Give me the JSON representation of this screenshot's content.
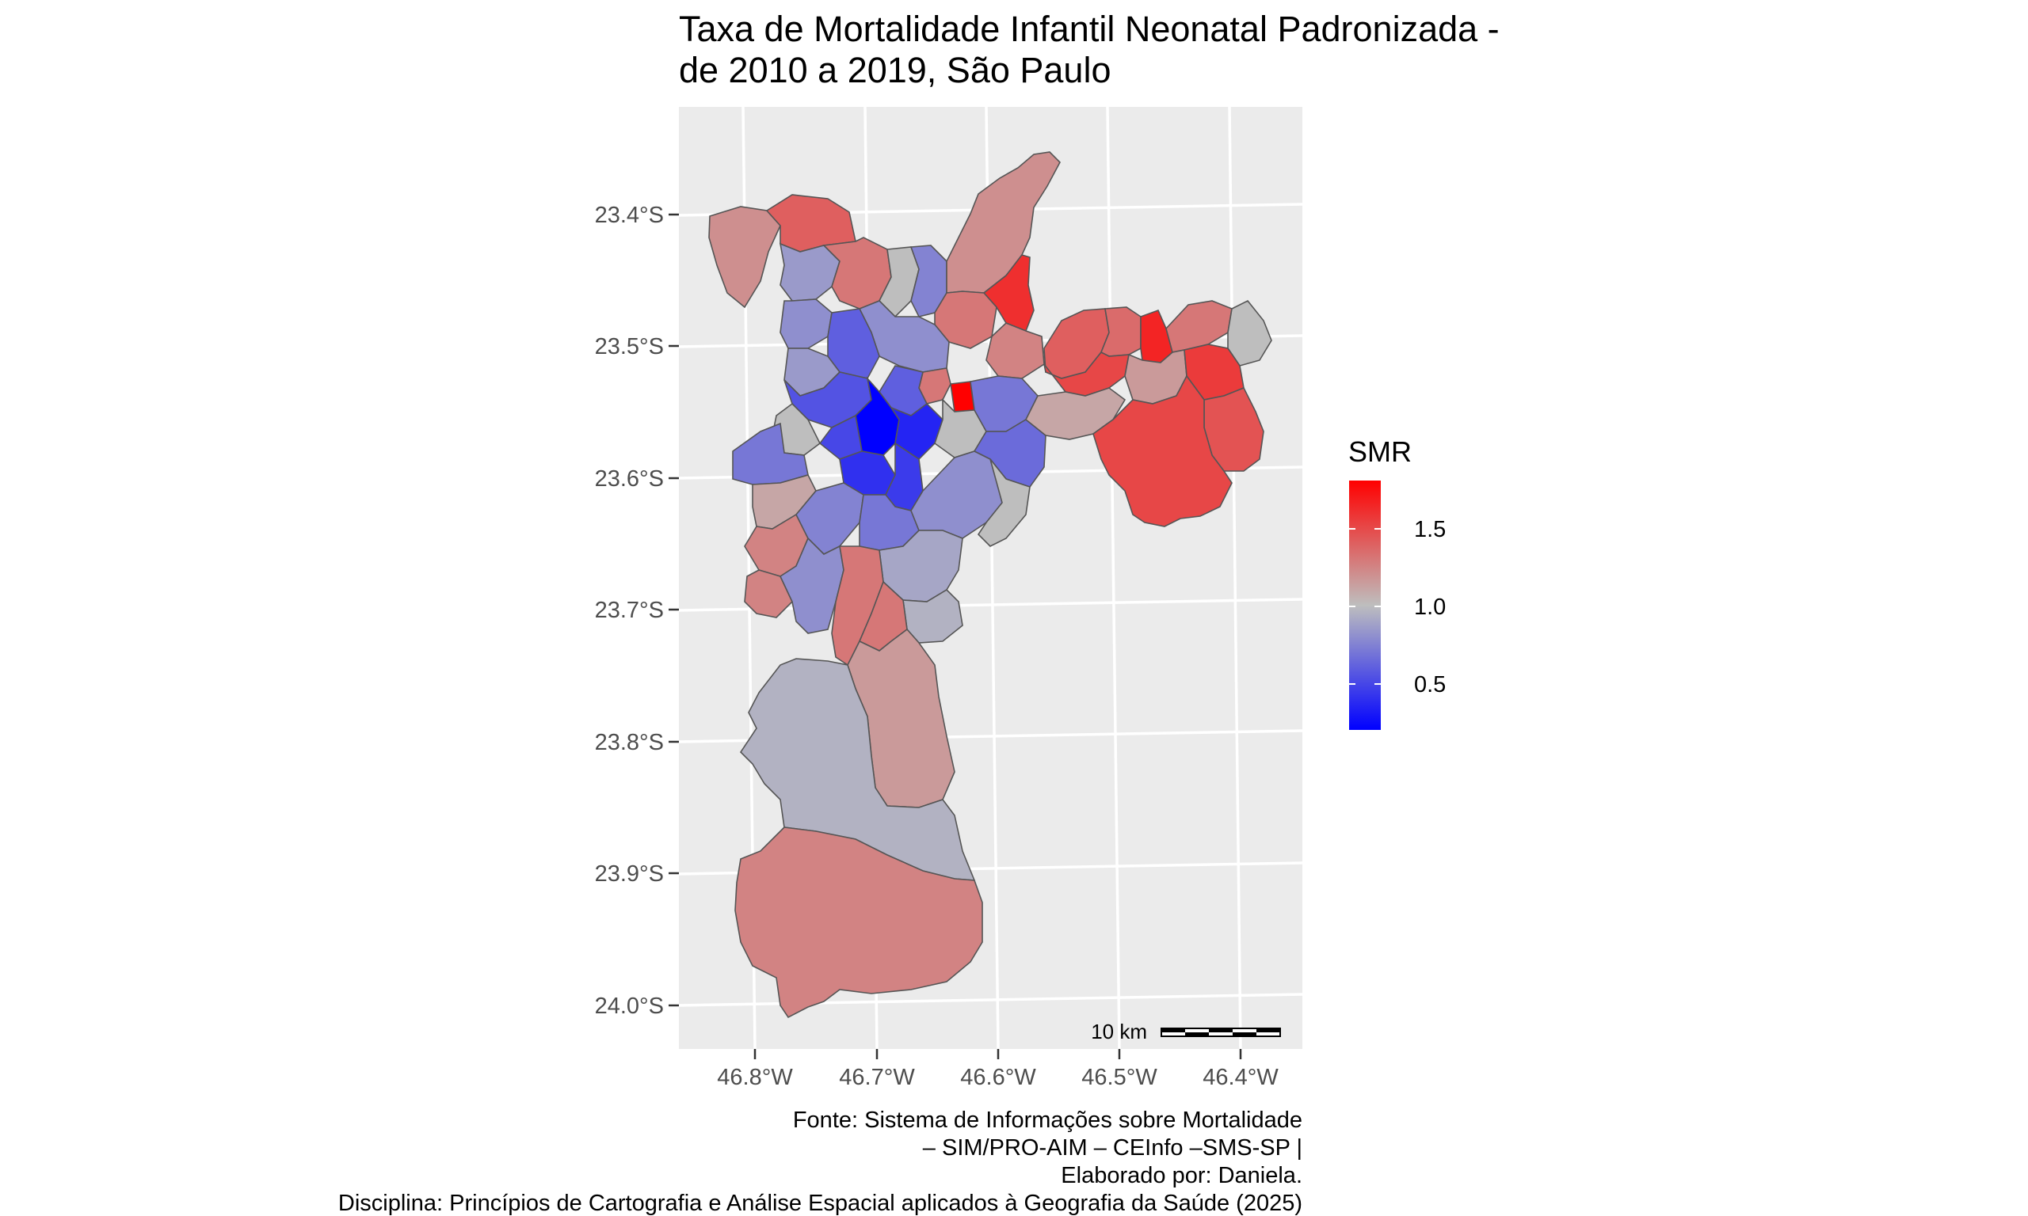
{
  "title": {
    "line1": "Taxa de Mortalidade Infantil Neonatal Padronizada -",
    "line2": " de 2010 a 2019, São Paulo"
  },
  "axes": {
    "y_ticks": [
      "23.4°S",
      "23.5°S",
      "23.6°S",
      "23.7°S",
      "23.8°S",
      "23.9°S",
      "24.0°S"
    ],
    "x_ticks": [
      "46.8°W",
      "46.7°W",
      "46.6°W",
      "46.5°W",
      "46.4°W"
    ]
  },
  "legend": {
    "title": "SMR",
    "labels": [
      "1.5",
      "1.0",
      "0.5"
    ],
    "scale_min": 0.2,
    "scale_max": 1.8,
    "colors": {
      "low": "#0000ff",
      "mid": "#bebebe",
      "high": "#ff0000"
    }
  },
  "scalebar": {
    "label": "10 km"
  },
  "caption": {
    "line1": "Fonte: Sistema de Informações sobre Mortalidade",
    "line2": "– SIM/PRO-AIM – CEInfo –SMS-SP |",
    "line3": "Elaborado por: Daniela.",
    "line4": "Disciplina: Princípios de Cartografia e Análise Espacial aplicados à Geografia da Saúde (2025)"
  },
  "map_data": {
    "districts": [
      {
        "id": "nw-far",
        "smr": 1.2
      },
      {
        "id": "nw-top",
        "smr": 1.4
      },
      {
        "id": "n-peak",
        "smr": 1.2
      },
      {
        "id": "n-east-red",
        "smr": 1.6
      },
      {
        "id": "e-top-1",
        "smr": 1.4
      },
      {
        "id": "e-top-2",
        "smr": 1.35
      },
      {
        "id": "e-red-2",
        "smr": 1.65
      },
      {
        "id": "e-top-3",
        "smr": 1.3
      },
      {
        "id": "e-far",
        "smr": 1.0
      },
      {
        "id": "e-mid-1",
        "smr": 1.5
      },
      {
        "id": "e-mid-2",
        "smr": 1.55
      },
      {
        "id": "e-mid-3",
        "smr": 1.15
      },
      {
        "id": "e-se-1",
        "smr": 1.45
      },
      {
        "id": "e-se-2",
        "smr": 1.5
      },
      {
        "id": "e-se-3",
        "smr": 1.1
      },
      {
        "id": "e-inner-1",
        "smr": 0.7
      },
      {
        "id": "e-inner-2",
        "smr": 0.65
      },
      {
        "id": "e-inner-3",
        "smr": 1.0
      },
      {
        "id": "center-red",
        "smr": 1.8
      },
      {
        "id": "center-1",
        "smr": 0.6
      },
      {
        "id": "center-2",
        "smr": 0.5
      },
      {
        "id": "center-blue",
        "smr": 0.2
      },
      {
        "id": "center-3",
        "smr": 0.35
      },
      {
        "id": "center-4",
        "smr": 0.4
      },
      {
        "id": "center-5",
        "smr": 0.45
      },
      {
        "id": "center-6",
        "smr": 1.3
      },
      {
        "id": "n-1",
        "smr": 0.85
      },
      {
        "id": "n-2",
        "smr": 1.3
      },
      {
        "id": "n-3",
        "smr": 1.0
      },
      {
        "id": "n-4",
        "smr": 0.75
      },
      {
        "id": "n-5",
        "smr": 1.3
      },
      {
        "id": "n-6",
        "smr": 0.8
      },
      {
        "id": "n-7",
        "smr": 1.25
      },
      {
        "id": "w-1",
        "smr": 0.8
      },
      {
        "id": "w-2",
        "smr": 0.6
      },
      {
        "id": "w-3",
        "smr": 0.85
      },
      {
        "id": "w-4",
        "smr": 1.0
      },
      {
        "id": "w-5",
        "smr": 0.55
      },
      {
        "id": "sw-1",
        "smr": 0.7
      },
      {
        "id": "sw-2",
        "smr": 1.1
      },
      {
        "id": "sw-3",
        "smr": 1.25
      },
      {
        "id": "sw-4",
        "smr": 0.75
      },
      {
        "id": "s-1",
        "smr": 0.8
      },
      {
        "id": "s-2",
        "smr": 0.7
      },
      {
        "id": "s-3",
        "smr": 0.8
      },
      {
        "id": "s-4",
        "smr": 1.3
      },
      {
        "id": "s-5",
        "smr": 1.0
      },
      {
        "id": "s-6",
        "smr": 0.9
      },
      {
        "id": "s-7",
        "smr": 1.3
      },
      {
        "id": "s-8",
        "smr": 1.15
      },
      {
        "id": "s-9",
        "smr": 0.95
      },
      {
        "id": "s-10",
        "smr": 1.25
      }
    ]
  }
}
